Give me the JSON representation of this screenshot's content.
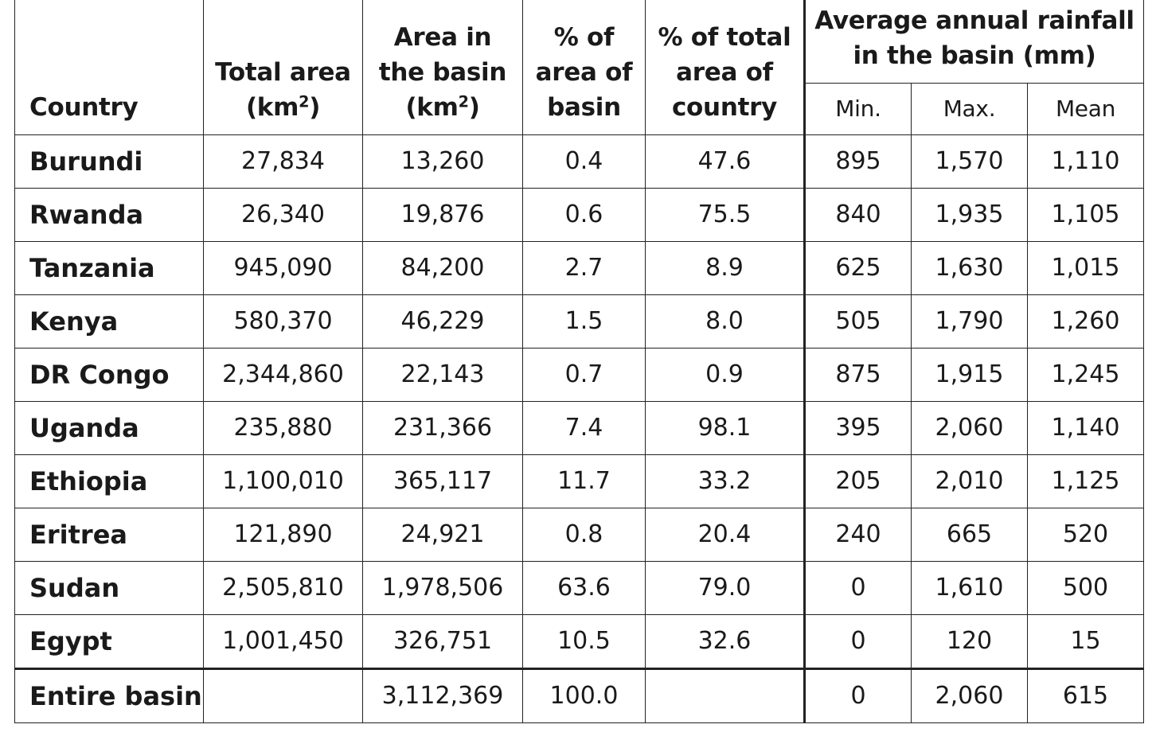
{
  "headers": {
    "country": "Country",
    "total_area": "Total area",
    "total_area_unit": "(km",
    "area_basin_1": "Area in",
    "area_basin_2": "the basin",
    "area_basin_unit": "(km",
    "squared": "2",
    "close_paren": ")",
    "pct_basin_1": "% of",
    "pct_basin_2": "area of",
    "pct_basin_3": "basin",
    "pct_country_1": "% of total",
    "pct_country_2": "area of",
    "pct_country_3": "country",
    "rainfall_1": "Average annual rainfall",
    "rainfall_2": "in the basin (mm)",
    "min": "Min.",
    "max": "Max.",
    "mean": "Mean"
  },
  "rows": [
    {
      "country": "Burundi",
      "total_area": "27,834",
      "area_basin": "13,260",
      "pct_basin": "0.4",
      "pct_country": "47.6",
      "min": "895",
      "max": "1,570",
      "mean": "1,110"
    },
    {
      "country": "Rwanda",
      "total_area": "26,340",
      "area_basin": "19,876",
      "pct_basin": "0.6",
      "pct_country": "75.5",
      "min": "840",
      "max": "1,935",
      "mean": "1,105"
    },
    {
      "country": "Tanzania",
      "total_area": "945,090",
      "area_basin": "84,200",
      "pct_basin": "2.7",
      "pct_country": "8.9",
      "min": "625",
      "max": "1,630",
      "mean": "1,015"
    },
    {
      "country": "Kenya",
      "total_area": "580,370",
      "area_basin": "46,229",
      "pct_basin": "1.5",
      "pct_country": "8.0",
      "min": "505",
      "max": "1,790",
      "mean": "1,260"
    },
    {
      "country": "DR Congo",
      "total_area": "2,344,860",
      "area_basin": "22,143",
      "pct_basin": "0.7",
      "pct_country": "0.9",
      "min": "875",
      "max": "1,915",
      "mean": "1,245"
    },
    {
      "country": "Uganda",
      "total_area": "235,880",
      "area_basin": "231,366",
      "pct_basin": "7.4",
      "pct_country": "98.1",
      "min": "395",
      "max": "2,060",
      "mean": "1,140"
    },
    {
      "country": "Ethiopia",
      "total_area": "1,100,010",
      "area_basin": "365,117",
      "pct_basin": "11.7",
      "pct_country": "33.2",
      "min": "205",
      "max": "2,010",
      "mean": "1,125"
    },
    {
      "country": "Eritrea",
      "total_area": "121,890",
      "area_basin": "24,921",
      "pct_basin": "0.8",
      "pct_country": "20.4",
      "min": "240",
      "max": "665",
      "mean": "520"
    },
    {
      "country": "Sudan",
      "total_area": "2,505,810",
      "area_basin": "1,978,506",
      "pct_basin": "63.6",
      "pct_country": "79.0",
      "min": "0",
      "max": "1,610",
      "mean": "500"
    },
    {
      "country": "Egypt",
      "total_area": "1,001,450",
      "area_basin": "326,751",
      "pct_basin": "10.5",
      "pct_country": "32.6",
      "min": "0",
      "max": "120",
      "mean": "15"
    }
  ],
  "total_row": {
    "country": "Entire basin",
    "total_area": "",
    "area_basin": "3,112,369",
    "pct_basin": "100.0",
    "pct_country": "",
    "min": "0",
    "max": "2,060",
    "mean": "615"
  }
}
